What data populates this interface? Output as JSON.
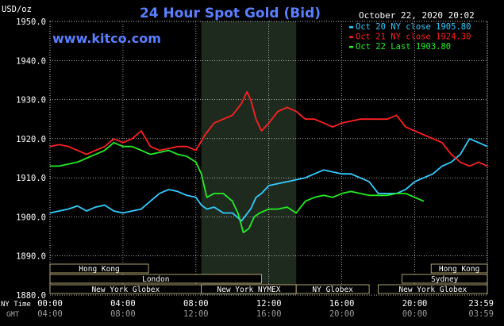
{
  "chart_data": {
    "type": "line",
    "title": "24 Hour Spot Gold (Bid)",
    "watermark": "www.kitco.com",
    "timestamp": "October 22, 2020 20:02",
    "ylabel": "USD/oz",
    "ylim": [
      1880,
      1950
    ],
    "yticks": [
      "1950.0",
      "1940.0",
      "1930.0",
      "1920.0",
      "1910.0",
      "1900.0",
      "1890.0",
      "1880.0"
    ],
    "x_axis_ny_label": "NY Time",
    "x_axis_gmt_label": "GMT",
    "xticks_ny": [
      "00:00",
      "04:00",
      "08:00",
      "12:00",
      "16:00",
      "20:00",
      "23:59"
    ],
    "xticks_gmt": [
      "04:00",
      "08:00",
      "12:00",
      "16:00",
      "20:00",
      "00:00",
      "03:59"
    ],
    "xlim_hours": [
      0,
      23.98
    ],
    "highlight_hours": [
      8.3,
      13.5
    ],
    "grid": true,
    "legend_position": "top-right",
    "series": [
      {
        "name": "Oct 20 NY close 1905.80",
        "color": "#33ccff",
        "x": [
          0,
          0.5,
          1,
          1.5,
          2,
          2.5,
          3,
          3.5,
          4,
          4.5,
          5,
          5.5,
          6,
          6.5,
          7,
          7.5,
          8,
          8.3,
          8.6,
          9,
          9.5,
          10,
          10.5,
          11,
          11.3,
          11.6,
          12,
          12.5,
          13,
          13.5,
          14,
          14.5,
          15,
          15.5,
          16,
          16.5,
          17,
          17.5,
          18,
          18.5,
          19,
          19.5,
          20,
          20.5,
          21,
          21.5,
          22,
          22.5,
          23,
          23.5,
          23.98
        ],
        "values": [
          1901,
          1901.5,
          1902,
          1902.8,
          1901.5,
          1902.5,
          1903,
          1901.5,
          1901,
          1901.5,
          1902,
          1904,
          1906,
          1907,
          1906.5,
          1905.5,
          1905,
          1903,
          1902,
          1902.5,
          1901,
          1901,
          1899,
          1902,
          1905,
          1906,
          1908,
          1908.5,
          1909,
          1909.5,
          1910,
          1911,
          1912,
          1911.5,
          1911,
          1911,
          1910,
          1909,
          1906,
          1906,
          1906,
          1907,
          1909,
          1910,
          1911,
          1913,
          1914,
          1916,
          1920,
          1919,
          1918
        ]
      },
      {
        "name": "Oct 21 NY close 1924.30",
        "color": "#ff2020",
        "x": [
          0,
          0.5,
          1,
          1.5,
          2,
          2.5,
          3,
          3.5,
          4,
          4.5,
          5,
          5.5,
          6,
          6.5,
          7,
          7.5,
          8,
          8.5,
          9,
          9.5,
          10,
          10.5,
          10.8,
          11,
          11.3,
          11.6,
          12,
          12.5,
          13,
          13.5,
          14,
          14.5,
          15,
          15.5,
          16,
          16.5,
          17,
          17.5,
          18,
          18.5,
          19,
          19.5,
          20,
          20.5,
          21,
          21.5,
          22,
          22.5,
          23,
          23.5,
          23.98
        ],
        "values": [
          1918,
          1918.5,
          1918,
          1917,
          1916,
          1917,
          1918,
          1920,
          1919,
          1920,
          1922,
          1918,
          1917,
          1917.5,
          1918,
          1918,
          1917,
          1921,
          1924,
          1925,
          1926,
          1929,
          1932,
          1930,
          1925,
          1922,
          1924,
          1927,
          1928,
          1927,
          1925,
          1925,
          1924,
          1923,
          1924,
          1924.5,
          1925,
          1925,
          1925,
          1925,
          1926,
          1923,
          1922,
          1921,
          1920,
          1919,
          1916,
          1914,
          1913,
          1914,
          1913
        ]
      },
      {
        "name": "Oct 22 Last 1903.80",
        "color": "#22ee22",
        "x": [
          0,
          0.5,
          1,
          1.5,
          2,
          2.5,
          3,
          3.5,
          4,
          4.5,
          5,
          5.5,
          6,
          6.5,
          7,
          7.5,
          8,
          8.3,
          8.6,
          9,
          9.5,
          10,
          10.3,
          10.6,
          10.9,
          11.2,
          11.5,
          12,
          12.5,
          13,
          13.5,
          14,
          14.5,
          15,
          15.5,
          16,
          16.5,
          17,
          17.5,
          18,
          18.5,
          19,
          19.5,
          20,
          20.5
        ],
        "values": [
          1913,
          1913,
          1913.5,
          1914,
          1915,
          1916,
          1917,
          1919,
          1918,
          1918,
          1917,
          1916,
          1916.5,
          1917,
          1916,
          1915.5,
          1914,
          1911,
          1905,
          1906,
          1906,
          1904,
          1901,
          1896,
          1897,
          1900,
          1901,
          1902,
          1902,
          1902.5,
          1901,
          1904,
          1905,
          1905.5,
          1905,
          1906,
          1906.5,
          1906,
          1905.5,
          1905.5,
          1905.5,
          1906,
          1906,
          1905,
          1904
        ]
      }
    ]
  },
  "sessions": {
    "row1": [
      "Hong Kong",
      "Hong Kong"
    ],
    "row2": [
      "London",
      "Sydney"
    ],
    "row3": [
      "New York Globex",
      "New York NYMEX",
      "NY Globex",
      "New York Globex"
    ]
  }
}
